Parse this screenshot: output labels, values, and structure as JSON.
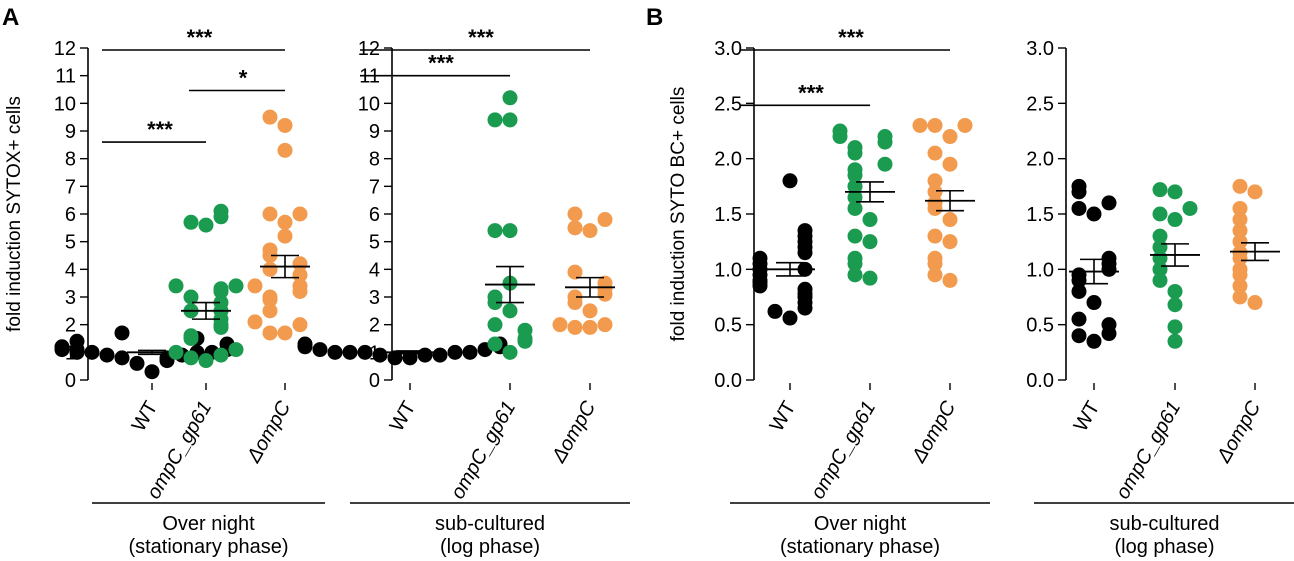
{
  "figure": {
    "panel_labels": [
      "A",
      "B"
    ],
    "colors": {
      "WT": "#000000",
      "ompC_gp61": "#1a9b50",
      "deltaompC": "#f29b4e"
    },
    "groups": [
      "WT",
      "ompC_gp61",
      "ΔompC"
    ],
    "conditions": [
      {
        "line1": "Over night",
        "line2": "(stationary phase)"
      },
      {
        "line1": "sub-cultured",
        "line2": "(log phase)"
      }
    ]
  },
  "chart_data": [
    {
      "type": "scatter",
      "panel": "A",
      "condition": "Over night (stationary phase)",
      "ylabel": "fold induction SYTOX+ cells",
      "ylim": [
        0,
        12
      ],
      "yticks": [
        "0",
        "1",
        "2",
        "3",
        "4",
        "5",
        "6",
        "7",
        "8",
        "9",
        "10",
        "11",
        "12"
      ],
      "categories": [
        "WT",
        "ompC_gp61",
        "ΔompC"
      ],
      "series": [
        {
          "name": "WT",
          "mean": 1.0,
          "sem": 0.07,
          "values": [
            0.3,
            0.6,
            0.7,
            0.8,
            0.8,
            0.9,
            0.9,
            1.0,
            1.0,
            1.0,
            1.0,
            1.1,
            1.1,
            1.1,
            1.2,
            1.3,
            1.4,
            1.5,
            1.7
          ]
        },
        {
          "name": "ompC_gp61",
          "mean": 2.5,
          "sem": 0.3,
          "values": [
            0.7,
            0.8,
            0.9,
            1.0,
            1.1,
            1.5,
            1.6,
            1.9,
            2.0,
            2.2,
            2.5,
            2.5,
            2.8,
            3.0,
            3.2,
            3.3,
            3.4,
            3.4,
            5.6,
            5.7,
            5.9,
            6.1
          ]
        },
        {
          "name": "ΔompC",
          "mean": 4.1,
          "sem": 0.4,
          "values": [
            1.7,
            1.7,
            2.0,
            2.1,
            2.5,
            2.9,
            3.0,
            3.2,
            3.4,
            3.4,
            3.8,
            4.0,
            4.2,
            4.5,
            4.7,
            5.2,
            5.7,
            6.0,
            6.0,
            8.3,
            9.2,
            9.5
          ]
        }
      ],
      "significance": [
        {
          "from": 0,
          "to": 2,
          "label": "***"
        },
        {
          "from": 1,
          "to": 2,
          "label": "*"
        },
        {
          "from": 0,
          "to": 1,
          "label": "***"
        }
      ]
    },
    {
      "type": "scatter",
      "panel": "A",
      "condition": "sub-cultured (log phase)",
      "ylabel": "",
      "ylim": [
        0,
        12
      ],
      "yticks": [
        "0",
        "1",
        "2",
        "3",
        "4",
        "5",
        "6",
        "7",
        "8",
        "9",
        "10",
        "11",
        "12"
      ],
      "categories": [
        "WT",
        "ompC_gp61",
        "ΔompC"
      ],
      "series": [
        {
          "name": "WT",
          "mean": 1.0,
          "sem": 0.05,
          "values": [
            0.8,
            0.8,
            0.9,
            0.9,
            0.9,
            1.0,
            1.0,
            1.0,
            1.0,
            1.0,
            1.1,
            1.1,
            1.2,
            1.2,
            1.3,
            1.3
          ]
        },
        {
          "name": "ompC_gp61",
          "mean": 3.45,
          "sem": 0.65,
          "values": [
            1.0,
            1.3,
            1.4,
            1.5,
            1.8,
            2.0,
            2.5,
            2.8,
            3.0,
            3.5,
            5.4,
            5.4,
            9.4,
            9.4,
            10.2
          ]
        },
        {
          "name": "ΔompC",
          "mean": 3.35,
          "sem": 0.35,
          "values": [
            1.9,
            1.9,
            2.0,
            2.0,
            2.5,
            2.8,
            3.0,
            3.1,
            3.3,
            3.5,
            3.9,
            5.4,
            5.5,
            5.8,
            6.0
          ]
        }
      ],
      "significance": [
        {
          "from": 0,
          "to": 2,
          "label": "***"
        },
        {
          "from": 0,
          "to": 1,
          "label": "***"
        }
      ]
    },
    {
      "type": "scatter",
      "panel": "B",
      "condition": "Over night (stationary phase)",
      "ylabel": "fold induction SYTO BC+ cells",
      "ylim": [
        0,
        3.0
      ],
      "yticks": [
        "0.0",
        "0.5",
        "1.0",
        "1.5",
        "2.0",
        "2.5",
        "3.0"
      ],
      "categories": [
        "WT",
        "ompC_gp61",
        "ΔompC"
      ],
      "series": [
        {
          "name": "WT",
          "mean": 1.0,
          "sem": 0.06,
          "values": [
            0.56,
            0.62,
            0.65,
            0.7,
            0.75,
            0.78,
            0.82,
            0.85,
            0.88,
            0.9,
            0.95,
            1.0,
            1.0,
            1.05,
            1.1,
            1.15,
            1.2,
            1.25,
            1.3,
            1.35,
            1.8
          ]
        },
        {
          "name": "ompC_gp61",
          "mean": 1.7,
          "sem": 0.09,
          "values": [
            0.92,
            0.95,
            1.05,
            1.1,
            1.25,
            1.3,
            1.45,
            1.55,
            1.65,
            1.75,
            1.85,
            1.9,
            1.95,
            2.05,
            2.1,
            2.15,
            2.2,
            2.2,
            2.25
          ]
        },
        {
          "name": "ΔompC",
          "mean": 1.62,
          "sem": 0.09,
          "values": [
            0.9,
            0.95,
            1.05,
            1.1,
            1.25,
            1.3,
            1.45,
            1.55,
            1.6,
            1.7,
            1.8,
            1.95,
            2.05,
            2.2,
            2.3,
            2.3,
            2.3
          ]
        }
      ],
      "significance": [
        {
          "from": 0,
          "to": 2,
          "label": "***"
        },
        {
          "from": 0,
          "to": 1,
          "label": "***"
        }
      ]
    },
    {
      "type": "scatter",
      "panel": "B",
      "condition": "sub-cultured (log phase)",
      "ylabel": "",
      "ylim": [
        0,
        3.0
      ],
      "yticks": [
        "0.0",
        "0.5",
        "1.0",
        "1.5",
        "2.0",
        "2.5",
        "3.0"
      ],
      "categories": [
        "WT",
        "ompC_gp61",
        "ΔompC"
      ],
      "series": [
        {
          "name": "WT",
          "mean": 0.98,
          "sem": 0.11,
          "values": [
            0.35,
            0.4,
            0.42,
            0.5,
            0.55,
            0.7,
            0.8,
            0.9,
            0.95,
            1.0,
            1.05,
            1.1,
            1.5,
            1.55,
            1.6,
            1.7,
            1.75
          ]
        },
        {
          "name": "ompC_gp61",
          "mean": 1.13,
          "sem": 0.1,
          "values": [
            0.35,
            0.48,
            0.68,
            0.8,
            0.9,
            1.0,
            1.1,
            1.2,
            1.3,
            1.45,
            1.5,
            1.55,
            1.7,
            1.72
          ]
        },
        {
          "name": "ΔompC",
          "mean": 1.16,
          "sem": 0.08,
          "values": [
            0.7,
            0.75,
            0.85,
            0.95,
            1.0,
            1.1,
            1.15,
            1.25,
            1.35,
            1.45,
            1.55,
            1.7,
            1.75
          ]
        }
      ],
      "significance": []
    }
  ]
}
